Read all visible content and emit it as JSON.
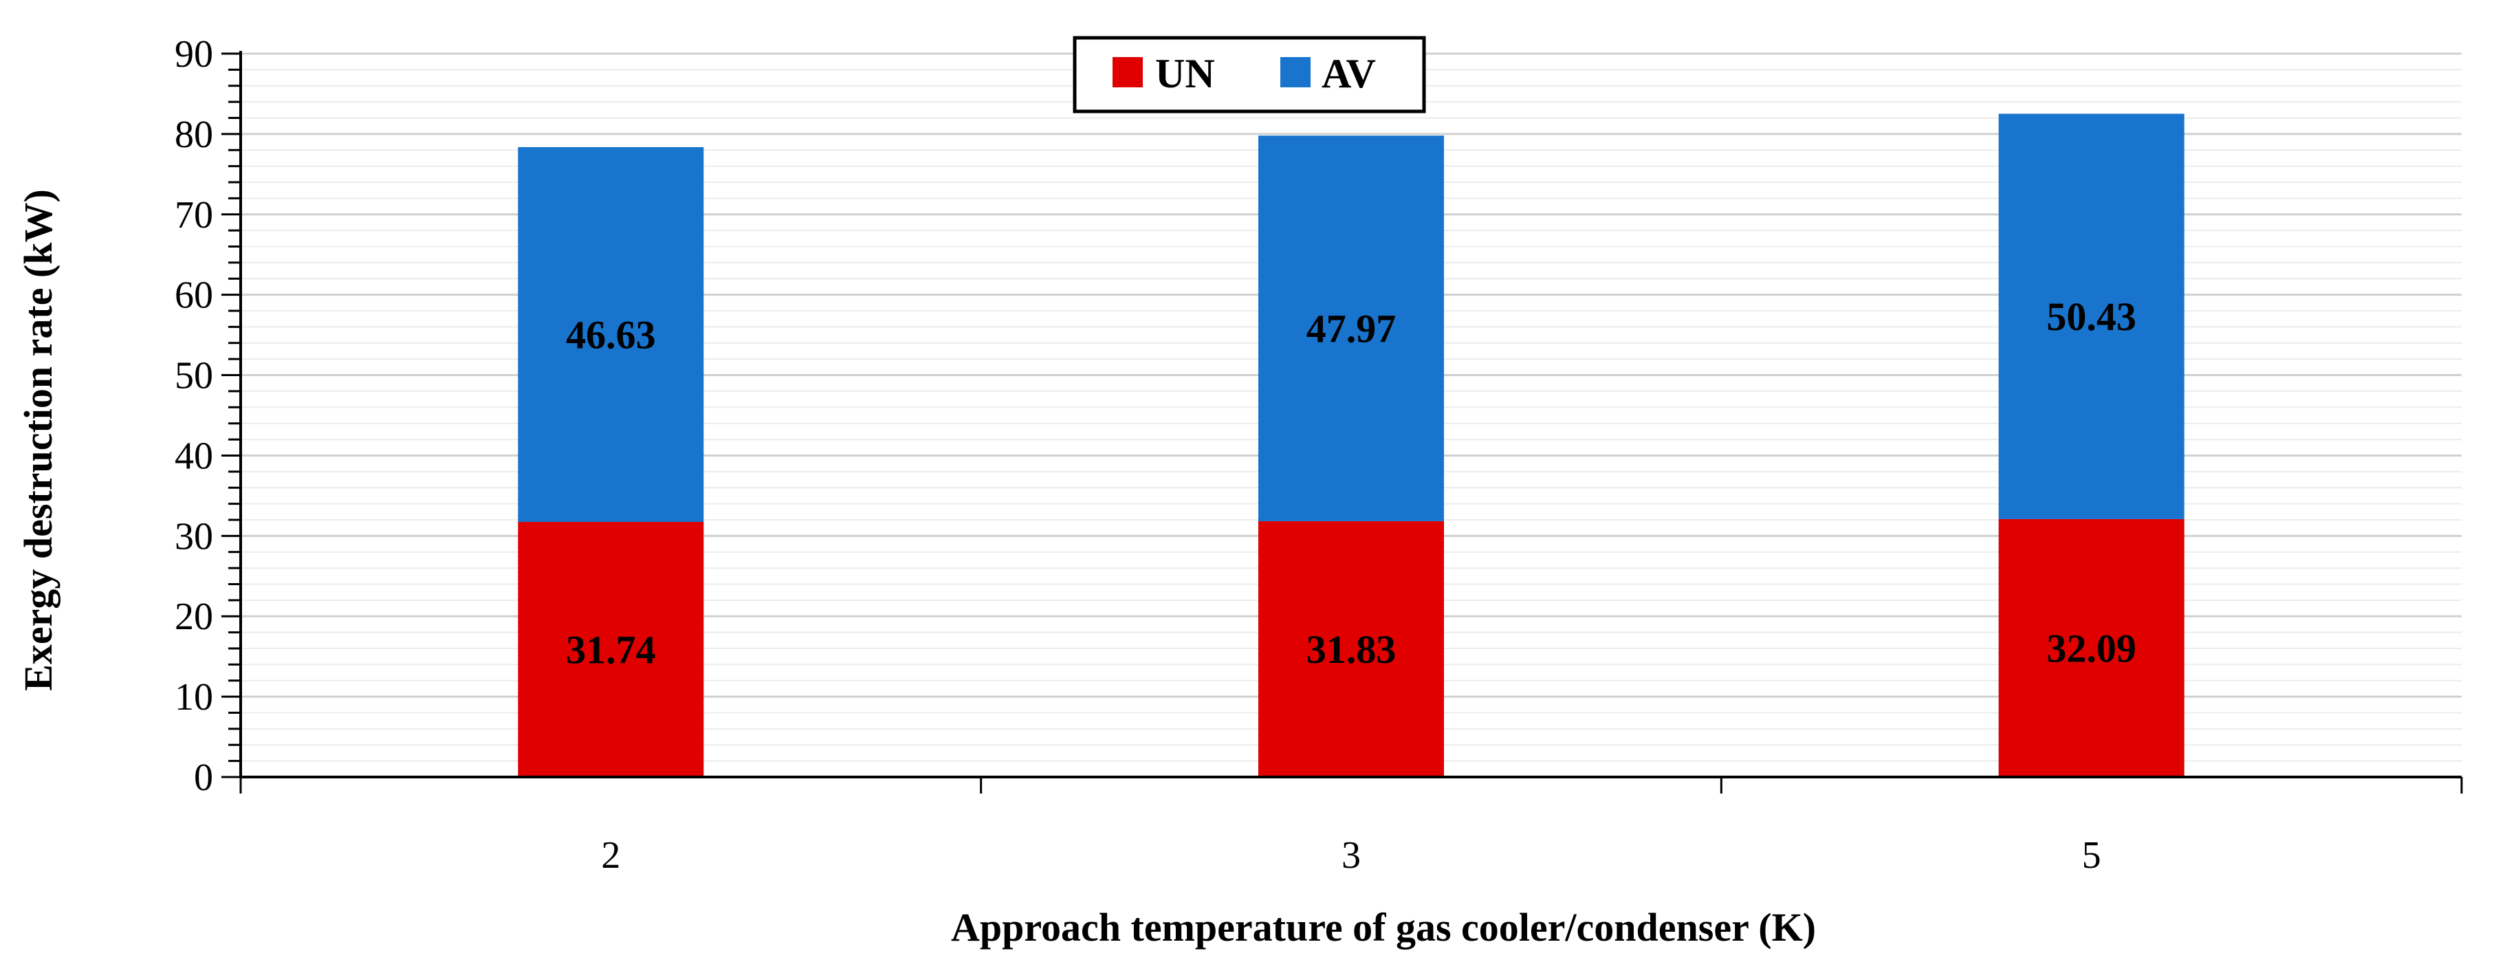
{
  "chart_data": {
    "type": "bar",
    "stacked": true,
    "categories": [
      "2",
      "3",
      "5"
    ],
    "series": [
      {
        "name": "UN",
        "color": "#e00000",
        "values": [
          31.74,
          31.83,
          32.09
        ]
      },
      {
        "name": "AV",
        "color": "#1874cd",
        "values": [
          46.63,
          47.97,
          50.43
        ]
      }
    ],
    "title": "",
    "xlabel": "Approach temperature of gas cooler/condenser (K)",
    "ylabel": "Exergy destruction rate (kW)",
    "ylim": [
      0,
      90
    ],
    "yticks": [
      0,
      10,
      20,
      30,
      40,
      50,
      60,
      70,
      80,
      90
    ],
    "grid": true,
    "legend_position": "top-center"
  }
}
